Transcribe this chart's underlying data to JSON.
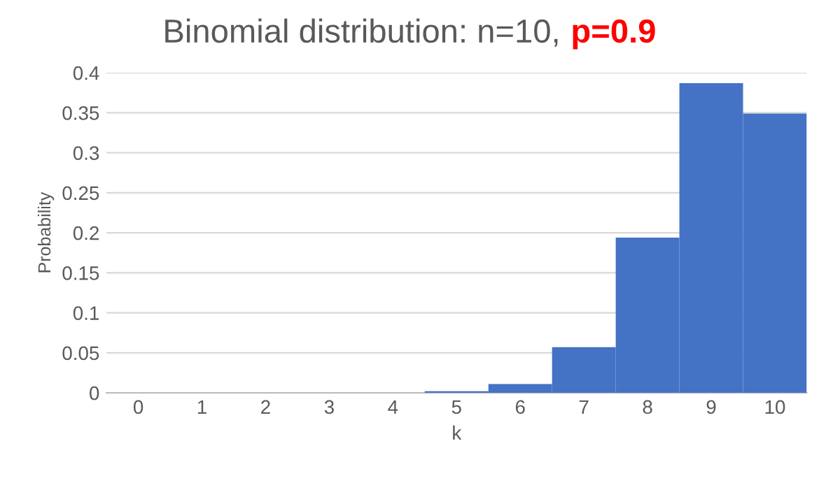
{
  "chart_data": {
    "type": "bar",
    "title": "Binomial distribution: n=10, p=0.9",
    "xlabel": "k",
    "ylabel": "Probability",
    "categories": [
      "0",
      "1",
      "2",
      "3",
      "4",
      "5",
      "6",
      "7",
      "8",
      "9",
      "10"
    ],
    "values": [
      0,
      0,
      0,
      0,
      0,
      0.002,
      0.011,
      0.057,
      0.194,
      0.387,
      0.349
    ],
    "color": "#4472c4",
    "ylim": [
      0,
      0.4
    ],
    "yticks": [
      0,
      0.05,
      0.1,
      0.15,
      0.2,
      0.25,
      0.3,
      0.35,
      0.4
    ],
    "grid": "y"
  }
}
